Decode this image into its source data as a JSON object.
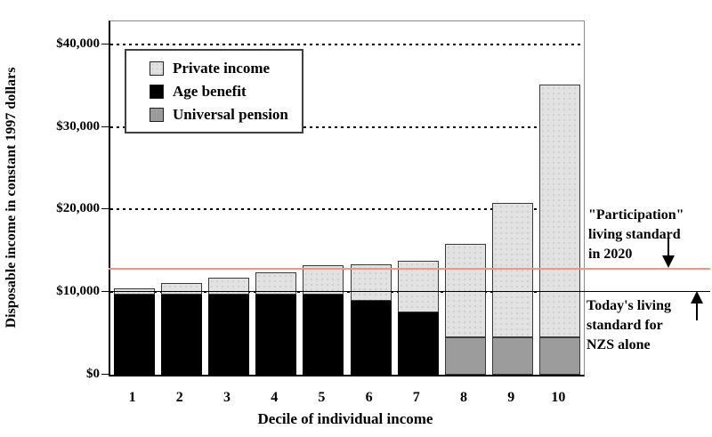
{
  "chart_data": {
    "type": "bar",
    "stacked": true,
    "categories": [
      "1",
      "2",
      "3",
      "4",
      "5",
      "6",
      "7",
      "8",
      "9",
      "10"
    ],
    "series": [
      {
        "name": "Age benefit",
        "color": "#000000",
        "values": [
          9700,
          9700,
          9700,
          9700,
          9700,
          8900,
          7500,
          0,
          0,
          0
        ]
      },
      {
        "name": "Universal pension",
        "color": "#9c9c9c",
        "values": [
          0,
          0,
          0,
          0,
          0,
          0,
          0,
          4500,
          4500,
          4500
        ]
      },
      {
        "name": "Private income",
        "color": "#e2e2e2",
        "values": [
          800,
          1400,
          2100,
          2700,
          3600,
          4500,
          6300,
          11400,
          16300,
          30600
        ]
      }
    ],
    "totals": [
      10500,
      11100,
      11800,
      12400,
      13300,
      13400,
      13800,
      15900,
      20800,
      35100
    ],
    "xlabel": "Decile of individual income",
    "ylabel": "Disposable income in constant 1997 dollars",
    "ylim": [
      0,
      42800
    ],
    "yticks": [
      0,
      10000,
      20000,
      30000,
      40000
    ],
    "ytick_labels": [
      "$0",
      "$10,000",
      "$20,000",
      "$30,000",
      "$40,000"
    ],
    "grid": "dotted-horizontal",
    "legend_position": "top-left-inside",
    "legend": [
      {
        "label": "Private income",
        "color": "#e2e2e2"
      },
      {
        "label": "Age benefit",
        "color": "#000000"
      },
      {
        "label": "Universal pension",
        "color": "#9c9c9c"
      }
    ],
    "reference_lines": [
      {
        "name": "participation-2020",
        "value": 12700,
        "color": "#ff8f8f",
        "thickness": 2
      },
      {
        "name": "today-nzs",
        "value": 10000,
        "color": "#000000",
        "thickness": 1
      }
    ]
  },
  "annotations": {
    "participation": {
      "lines": [
        "\"Participation\"",
        "living standard",
        "in 2020"
      ],
      "arrow": "down"
    },
    "today": {
      "lines": [
        "Today's living",
        "standard for",
        "NZS alone"
      ],
      "arrow": "up"
    }
  }
}
